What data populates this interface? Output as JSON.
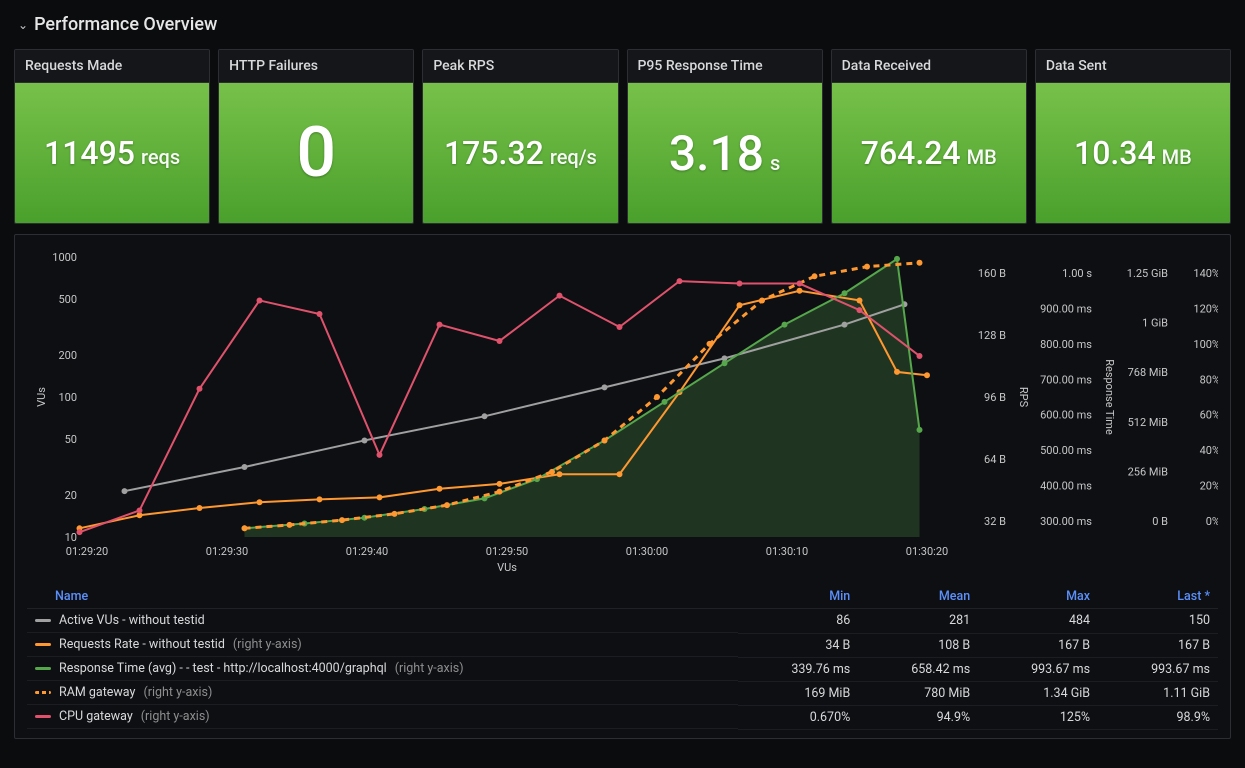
{
  "header": {
    "title": "Performance Overview"
  },
  "colors": {
    "background": "#0b0c0e",
    "panel_border": "#2c2e33",
    "stat_green_top": "#77c14a",
    "stat_green_bottom": "#4aa02c",
    "link": "#5b8ff9",
    "series_gray": "#a0a0a0",
    "series_orange": "#ff9830",
    "series_green": "#56a64b",
    "series_orange_dash": "#ff9830",
    "series_red": "#e0526c",
    "area_fill": "rgba(86,166,75,0.25)",
    "grid": "#2a2c31"
  },
  "stats": [
    {
      "title": "Requests Made",
      "value": "11495",
      "unit": "reqs",
      "value_size": 32
    },
    {
      "title": "HTTP Failures",
      "value": "0",
      "unit": "",
      "value_size": 70
    },
    {
      "title": "Peak RPS",
      "value": "175.32",
      "unit": "req/s",
      "value_size": 32
    },
    {
      "title": "P95 Response Time",
      "value": "3.18",
      "unit": "s",
      "value_size": 48
    },
    {
      "title": "Data Received",
      "value": "764.24",
      "unit": "MB",
      "value_size": 32
    },
    {
      "title": "Data Sent",
      "value": "10.34",
      "unit": "MB",
      "value_size": 32
    }
  ],
  "chart": {
    "type": "line",
    "x_tick_labels": [
      "01:29:20",
      "01:29:30",
      "01:29:40",
      "01:29:50",
      "01:30:00",
      "01:30:10",
      "01:30:20"
    ],
    "x_axis_title": "VUs",
    "y_left_label": "VUs",
    "y_left_ticks": [
      "1000",
      "500",
      "200",
      "100",
      "50",
      "20",
      "10"
    ],
    "right_axis_columns": [
      {
        "label": "",
        "ticks": [
          "160 B",
          "128 B",
          "96 B",
          "64 B",
          "32 B"
        ],
        "side_label": "RPS"
      },
      {
        "label": "",
        "ticks": [
          "1.00 s",
          "900.00 ms",
          "800.00 ms",
          "700.00 ms",
          "600.00 ms",
          "500.00 ms",
          "400.00 ms",
          "300.00 ms"
        ],
        "side_label": "Response Time"
      },
      {
        "label": "",
        "ticks": [
          "1.25 GiB",
          "1 GiB",
          "768 MiB",
          "512 MiB",
          "256 MiB",
          "0 B"
        ]
      },
      {
        "label": "",
        "ticks": [
          "140%",
          "120%",
          "100%",
          "80%",
          "60%",
          "40%",
          "20%",
          "0%"
        ]
      }
    ],
    "series": [
      {
        "name": "Active VUs - without testid",
        "color": "#a0a0a0",
        "style": "solid",
        "points": [
          [
            5,
            95
          ],
          [
            21,
            145
          ],
          [
            37,
            200
          ],
          [
            53,
            250
          ],
          [
            69,
            310
          ],
          [
            85,
            370
          ],
          [
            101,
            440
          ],
          [
            109,
            482
          ]
        ]
      },
      {
        "name": "Requests Rate - without testid",
        "color": "#ff9830",
        "style": "solid",
        "note": "(right y-axis)",
        "points": [
          [
            -1,
            18
          ],
          [
            7,
            45
          ],
          [
            15,
            60
          ],
          [
            23,
            72
          ],
          [
            31,
            78
          ],
          [
            39,
            82
          ],
          [
            47,
            100
          ],
          [
            55,
            110
          ],
          [
            63,
            130
          ],
          [
            71,
            130
          ],
          [
            79,
            300
          ],
          [
            87,
            480
          ],
          [
            95,
            510
          ],
          [
            103,
            490
          ],
          [
            108,
            342
          ],
          [
            112,
            335
          ]
        ]
      },
      {
        "name": "Response Time (avg) - - test - http://localhost:4000/graphql",
        "color": "#56a64b",
        "style": "solid",
        "note": "(right y-axis)",
        "area": true,
        "points": [
          [
            21,
            18
          ],
          [
            29,
            28
          ],
          [
            37,
            40
          ],
          [
            45,
            58
          ],
          [
            53,
            80
          ],
          [
            60,
            120
          ],
          [
            69,
            200
          ],
          [
            77,
            280
          ],
          [
            85,
            360
          ],
          [
            93,
            440
          ],
          [
            101,
            505
          ],
          [
            108,
            576
          ],
          [
            111,
            222
          ]
        ]
      },
      {
        "name": "RAM gateway",
        "color": "#ff9830",
        "style": "dashed",
        "note": "(right y-axis)",
        "points": [
          [
            21,
            18
          ],
          [
            27,
            25
          ],
          [
            34,
            35
          ],
          [
            41,
            48
          ],
          [
            48,
            66
          ],
          [
            55,
            94
          ],
          [
            62,
            135
          ],
          [
            69,
            200
          ],
          [
            76,
            290
          ],
          [
            83,
            400
          ],
          [
            90,
            490
          ],
          [
            97,
            540
          ],
          [
            104,
            560
          ],
          [
            111,
            568
          ]
        ]
      },
      {
        "name": "CPU gateway",
        "color": "#e0526c",
        "style": "solid",
        "note": "(right y-axis)",
        "points": [
          [
            -1,
            10
          ],
          [
            7,
            55
          ],
          [
            15,
            307
          ],
          [
            23,
            490
          ],
          [
            31,
            462
          ],
          [
            39,
            170
          ],
          [
            47,
            440
          ],
          [
            55,
            406
          ],
          [
            63,
            500
          ],
          [
            71,
            435
          ],
          [
            79,
            530
          ],
          [
            87,
            525
          ],
          [
            95,
            525
          ],
          [
            103,
            470
          ],
          [
            111,
            375
          ]
        ]
      }
    ],
    "y_left_scale": {
      "type": "log",
      "min": 10,
      "max": 1000
    }
  },
  "legend": {
    "columns": [
      "Name",
      "Min",
      "Mean",
      "Max",
      "Last *"
    ],
    "rows": [
      {
        "swatch": "#a0a0a0",
        "name": "Active VUs - without testid",
        "note": "",
        "min": "86",
        "mean": "281",
        "max": "484",
        "last": "150"
      },
      {
        "swatch": "#ff9830",
        "name": "Requests Rate - without testid",
        "note": "(right y-axis)",
        "min": "34 B",
        "mean": "108 B",
        "max": "167 B",
        "last": "167 B"
      },
      {
        "swatch": "#56a64b",
        "name": "Response Time (avg) - - test - http://localhost:4000/graphql",
        "note": "(right y-axis)",
        "min": "339.76 ms",
        "mean": "658.42 ms",
        "max": "993.67 ms",
        "last": "993.67 ms"
      },
      {
        "swatch": "#ff9830",
        "dashed": true,
        "name": "RAM gateway",
        "note": "(right y-axis)",
        "min": "169 MiB",
        "mean": "780 MiB",
        "max": "1.34 GiB",
        "last": "1.11 GiB"
      },
      {
        "swatch": "#e0526c",
        "name": "CPU gateway",
        "note": "(right y-axis)",
        "min": "0.670%",
        "mean": "94.9%",
        "max": "125%",
        "last": "98.9%"
      }
    ]
  }
}
